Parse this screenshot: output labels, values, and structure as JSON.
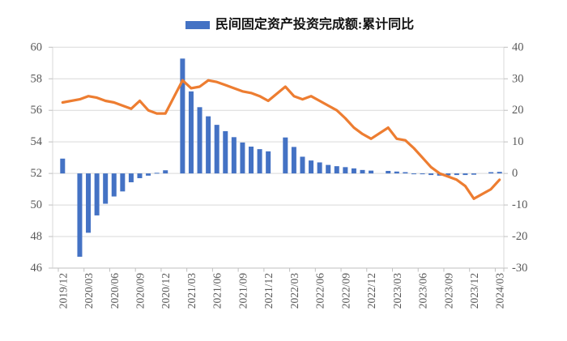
{
  "page": {
    "background": "#ffffff"
  },
  "legend": {
    "items": [
      {
        "label": "民间固定资产投资完成额:累计同比",
        "swatch_color": "#4472C4",
        "series_type": "bar"
      }
    ]
  },
  "colors": {
    "bar": "#4472C4",
    "line": "#ED7D31",
    "grid": "#D9D9D9",
    "axis": "#BFBFBF",
    "tick_text": "#595959",
    "background": "#ffffff"
  },
  "chart_data": {
    "type": "bar",
    "subtype": "combo-bar-line-dual-axis",
    "title": "",
    "xlabel": "",
    "ylabel_left": "",
    "ylabel_right": "",
    "x": [
      "2019/12",
      "2020/02",
      "2020/03",
      "2020/04",
      "2020/05",
      "2020/06",
      "2020/07",
      "2020/08",
      "2020/09",
      "2020/10",
      "2020/11",
      "2020/12",
      "2021/02",
      "2021/03",
      "2021/04",
      "2021/05",
      "2021/06",
      "2021/07",
      "2021/08",
      "2021/09",
      "2021/10",
      "2021/11",
      "2021/12",
      "2022/02",
      "2022/03",
      "2022/04",
      "2022/05",
      "2022/06",
      "2022/07",
      "2022/08",
      "2022/09",
      "2022/10",
      "2022/11",
      "2022/12",
      "2023/02",
      "2023/03",
      "2023/04",
      "2023/05",
      "2023/06",
      "2023/07",
      "2023/08",
      "2023/09",
      "2023/10",
      "2023/11",
      "2023/12",
      "2024/02",
      "2024/03"
    ],
    "series": [
      {
        "name": "民间固定资产投资完成额:累计同比",
        "type": "bar",
        "axis": "right",
        "color": "#4472C4",
        "values": [
          4.7,
          -26.4,
          -18.8,
          -13.3,
          -9.6,
          -7.3,
          -5.7,
          -2.8,
          -1.5,
          -0.7,
          0.2,
          1.0,
          36.4,
          26.0,
          21.0,
          18.1,
          15.4,
          13.4,
          11.5,
          9.8,
          8.5,
          7.7,
          7.0,
          11.4,
          8.4,
          5.3,
          4.1,
          3.5,
          2.7,
          2.3,
          2.0,
          1.6,
          1.1,
          0.9,
          0.8,
          0.6,
          0.4,
          -0.1,
          -0.2,
          -0.5,
          -0.7,
          -0.6,
          -0.5,
          -0.5,
          -0.4,
          0.4,
          0.5
        ]
      },
      {
        "name": "unlabeled-orange-line",
        "type": "line",
        "axis": "left",
        "color": "#ED7D31",
        "values": [
          56.5,
          56.7,
          56.9,
          56.8,
          56.6,
          56.5,
          56.3,
          56.1,
          56.6,
          56.0,
          55.8,
          55.8,
          57.9,
          57.4,
          57.5,
          57.9,
          57.8,
          57.6,
          57.4,
          57.2,
          57.1,
          56.9,
          56.6,
          57.5,
          56.9,
          56.7,
          56.9,
          56.6,
          56.3,
          56.0,
          55.5,
          54.9,
          54.5,
          54.2,
          54.9,
          54.2,
          54.1,
          53.6,
          53.0,
          52.4,
          52.0,
          51.8,
          51.6,
          51.2,
          50.4,
          51.0,
          51.6
        ]
      }
    ],
    "left_axis": {
      "min": 46,
      "max": 60,
      "step": 2,
      "tick_labels": [
        "46",
        "48",
        "50",
        "52",
        "54",
        "56",
        "58",
        "60"
      ]
    },
    "right_axis": {
      "min": -30,
      "max": 40,
      "step": 10,
      "tick_labels": [
        "-30",
        "-20",
        "-10",
        "0",
        "10",
        "20",
        "30",
        "40"
      ]
    },
    "x_axis": {
      "tick_labels": [
        "2019/12",
        "2020/03",
        "2020/06",
        "2020/09",
        "2020/12",
        "2021/03",
        "2021/06",
        "2021/09",
        "2021/12",
        "2022/03",
        "2022/06",
        "2022/09",
        "2022/12",
        "2023/03",
        "2023/06",
        "2023/09",
        "2023/12",
        "2024/03"
      ],
      "label_interval_months": 3,
      "labels_rotated_degrees": 90
    },
    "grid": "horizontal",
    "legend_position": "top-center",
    "layout_note": "monthly category slots include empty January positions (Jan-Feb combined reporting)"
  }
}
